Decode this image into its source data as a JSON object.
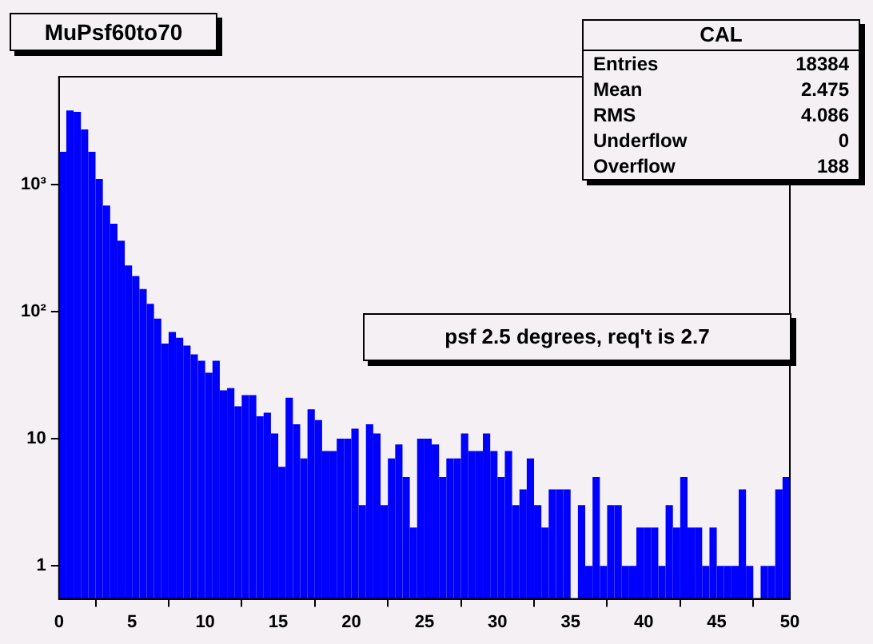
{
  "chart_data": {
    "type": "histogram",
    "title": "MuPsf60to70",
    "bins": [
      0,
      0.5,
      1,
      1.5,
      2,
      2.5,
      3,
      3.5,
      4,
      4.5,
      5,
      5.5,
      6,
      6.5,
      7,
      7.5,
      8,
      8.5,
      9,
      9.5,
      10,
      10.5,
      11,
      11.5,
      12,
      12.5,
      13,
      13.5,
      14,
      14.5,
      15,
      15.5,
      16,
      16.5,
      17,
      17.5,
      18,
      18.5,
      19,
      19.5,
      20,
      20.5,
      21,
      21.5,
      22,
      22.5,
      23,
      23.5,
      24,
      24.5,
      25,
      25.5,
      26,
      26.5,
      27,
      27.5,
      28,
      28.5,
      29,
      29.5,
      30,
      30.5,
      31,
      31.5,
      32,
      32.5,
      33,
      33.5,
      34,
      34.5,
      35,
      35.5,
      36,
      36.5,
      37,
      37.5,
      38,
      38.5,
      39,
      39.5,
      40,
      40.5,
      41,
      41.5,
      42,
      42.5,
      43,
      43.5,
      44,
      44.5,
      45,
      45.5,
      46,
      46.5,
      47,
      47.5,
      48,
      48.5,
      49,
      49.5,
      50
    ],
    "values": [
      1800,
      3800,
      3700,
      2700,
      1800,
      1100,
      680,
      490,
      360,
      230,
      190,
      150,
      115,
      88,
      56,
      69,
      62,
      54,
      46,
      41,
      33,
      41,
      24,
      25,
      18,
      22,
      22,
      15,
      16,
      11,
      6,
      21,
      13,
      7,
      17,
      14,
      8,
      8,
      10,
      10,
      12,
      3,
      13,
      11,
      3,
      7,
      9,
      5,
      2,
      10,
      10,
      9,
      5,
      7,
      7,
      11,
      8,
      8,
      11,
      8,
      5,
      8,
      3,
      4,
      7,
      3,
      2,
      4,
      4,
      4,
      null,
      3,
      1,
      5,
      1,
      3,
      3,
      1,
      1,
      2,
      2,
      2,
      1,
      3,
      2,
      5,
      2,
      2,
      1,
      2,
      1,
      1,
      1,
      4,
      1,
      null,
      1,
      1,
      4,
      5
    ],
    "color": "#0000ff",
    "xlim": [
      0,
      50
    ],
    "xticks": [
      0,
      5,
      10,
      15,
      20,
      25,
      30,
      35,
      40,
      45,
      50
    ],
    "ylim": [
      0.55,
      7000
    ],
    "log": "y",
    "yticks": [
      1,
      10,
      {
        "value": 100,
        "label": "10²"
      },
      {
        "value": 1000,
        "label": "10³"
      }
    ],
    "grid": false,
    "legend": false,
    "annotations": [
      "CAL",
      "Entries",
      "18384",
      "Mean",
      "2.475",
      "RMS",
      "4.086",
      "Underflow",
      "0",
      "Overflow",
      "188",
      "psf 2.5 degrees, req't is 2.7"
    ]
  }
}
